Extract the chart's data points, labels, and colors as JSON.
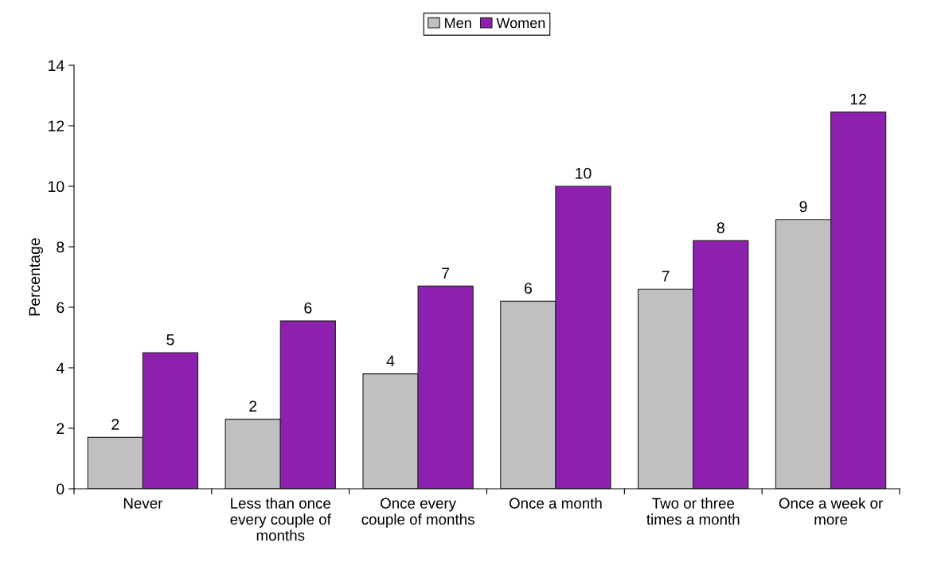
{
  "chart_data": {
    "type": "bar",
    "ylabel": "Percentage",
    "categories": [
      "Never",
      "Less than once\nevery couple of\nmonths",
      "Once every\ncouple of months",
      "Once a month",
      "Two or three\ntimes a month",
      "Once a week or\nmore"
    ],
    "series": [
      {
        "name": "Men",
        "color": "#c0c0c0",
        "values": [
          1.7,
          2.3,
          3.8,
          6.2,
          6.6,
          8.9
        ],
        "value_labels": [
          "2",
          "2",
          "4",
          "6",
          "7",
          "9"
        ]
      },
      {
        "name": "Women",
        "color": "#8e20b0",
        "values": [
          4.5,
          5.55,
          6.7,
          10.0,
          8.2,
          12.45
        ],
        "value_labels": [
          "5",
          "6",
          "7",
          "10",
          "8",
          "12"
        ]
      }
    ],
    "ylim": [
      0,
      14
    ],
    "yticks": [
      0,
      2,
      4,
      6,
      8,
      10,
      12,
      14
    ],
    "grid": false,
    "legend": "top"
  }
}
